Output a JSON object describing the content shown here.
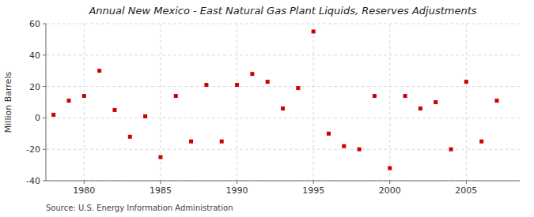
{
  "chart_data": {
    "type": "scatter",
    "title": "Annual New Mexico - East Natural Gas Plant Liquids, Reserves Adjustments",
    "ylabel": "Million Barrels",
    "source": "Source: U.S. Energy Information Administration",
    "x": [
      1978,
      1979,
      1980,
      1981,
      1982,
      1983,
      1984,
      1985,
      1986,
      1987,
      1988,
      1989,
      1990,
      1991,
      1992,
      1993,
      1994,
      1995,
      1996,
      1997,
      1998,
      1999,
      2000,
      2001,
      2002,
      2003,
      2004,
      2005,
      2006,
      2007
    ],
    "values": [
      2,
      11,
      14,
      30,
      5,
      -12,
      1,
      -25,
      14,
      -15,
      21,
      -15,
      21,
      28,
      23,
      6,
      19,
      55,
      -10,
      -18,
      -20,
      14,
      -32,
      14,
      6,
      10,
      -20,
      23,
      -15,
      11
    ],
    "color": "#cc0000",
    "marker": "square",
    "xlim": [
      1977.5,
      2008.5
    ],
    "ylim": [
      -40,
      60
    ],
    "xticks": [
      1980,
      1985,
      1990,
      1995,
      2000,
      2005
    ],
    "yticks": [
      -40,
      -20,
      0,
      20,
      40,
      60
    ],
    "grid": true
  }
}
